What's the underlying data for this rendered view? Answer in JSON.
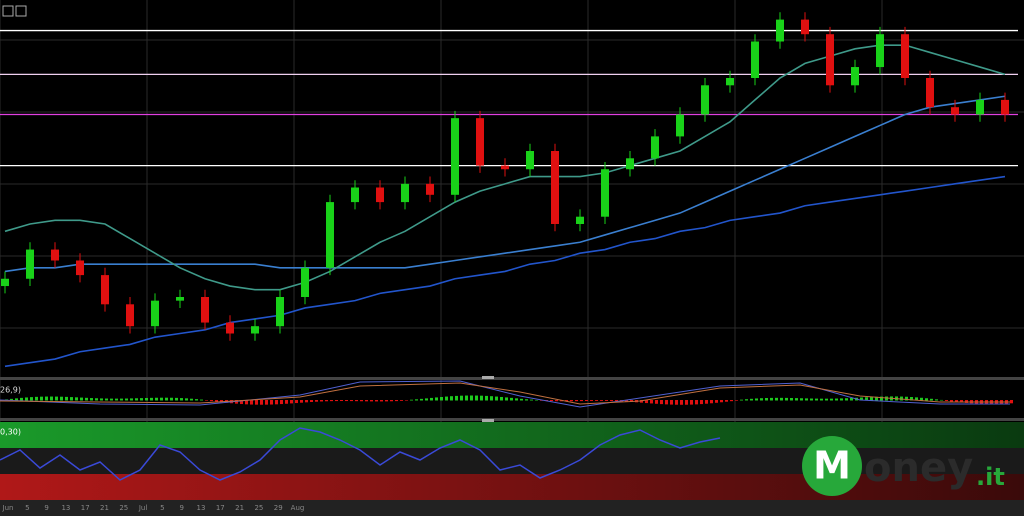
{
  "chart_data": {
    "type": "candlestick",
    "open": [
      23,
      25,
      33,
      30,
      26,
      18,
      12,
      19,
      20,
      13,
      10,
      12,
      20,
      28,
      46,
      50,
      46,
      51,
      48,
      69,
      56,
      55,
      60,
      40,
      42,
      55,
      58,
      64,
      70,
      78,
      80,
      90,
      96,
      92,
      78,
      83,
      92,
      80,
      72,
      70,
      74
    ],
    "high": [
      27,
      35,
      35,
      32,
      28,
      20,
      21,
      22,
      22,
      15,
      14,
      22,
      30,
      48,
      52,
      52,
      53,
      53,
      71,
      71,
      58,
      62,
      62,
      44,
      57,
      60,
      66,
      72,
      80,
      82,
      92,
      98,
      98,
      94,
      85,
      94,
      94,
      82,
      74,
      76,
      76
    ],
    "low": [
      21,
      23,
      28,
      24,
      16,
      10,
      10,
      17,
      11,
      8,
      8,
      10,
      18,
      26,
      44,
      44,
      44,
      46,
      46,
      54,
      53,
      53,
      38,
      38,
      40,
      53,
      56,
      62,
      68,
      76,
      78,
      88,
      90,
      76,
      76,
      81,
      78,
      70,
      68,
      68,
      68
    ],
    "close": [
      25,
      33,
      30,
      26,
      18,
      12,
      19,
      20,
      13,
      10,
      12,
      20,
      28,
      46,
      50,
      46,
      51,
      48,
      69,
      56,
      55,
      60,
      40,
      42,
      55,
      58,
      64,
      70,
      78,
      80,
      90,
      96,
      92,
      78,
      83,
      92,
      80,
      72,
      70,
      74,
      70
    ],
    "up_color": "#19d219",
    "down_color": "#e01010",
    "moving_averages": [
      {
        "color": "#2255cc",
        "values": [
          1,
          2,
          3,
          5,
          6,
          7,
          9,
          10,
          11,
          13,
          14,
          15,
          17,
          18,
          19,
          21,
          22,
          23,
          25,
          26,
          27,
          29,
          30,
          32,
          33,
          35,
          36,
          38,
          39,
          41,
          42,
          43,
          45,
          46,
          47,
          48,
          49,
          50,
          51,
          52,
          53
        ]
      },
      {
        "color": "#3a7fd0",
        "values": [
          27,
          28,
          28,
          29,
          29,
          29,
          29,
          29,
          29,
          29,
          29,
          28,
          28,
          28,
          28,
          28,
          28,
          29,
          30,
          31,
          32,
          33,
          34,
          35,
          37,
          39,
          41,
          43,
          46,
          49,
          52,
          55,
          58,
          61,
          64,
          67,
          70,
          72,
          73,
          74,
          75
        ]
      },
      {
        "color": "#3f9a8a",
        "values": [
          38,
          40,
          41,
          41,
          40,
          36,
          32,
          28,
          25,
          23,
          22,
          22,
          24,
          27,
          31,
          35,
          38,
          42,
          46,
          49,
          51,
          53,
          53,
          53,
          54,
          56,
          58,
          60,
          64,
          68,
          74,
          80,
          84,
          86,
          88,
          89,
          89,
          87,
          85,
          83,
          81
        ]
      }
    ],
    "levels": [
      {
        "value": 93,
        "color": "#ffffff"
      },
      {
        "value": 81,
        "color": "#f0d0f0"
      },
      {
        "value": 70,
        "color": "#e040e0"
      },
      {
        "value": 56,
        "color": "#ffffff"
      }
    ],
    "ylim": [
      0,
      100
    ],
    "macd_label": "26,9)",
    "oscillator_label": "0,30)",
    "x_labels": [
      "Jun",
      "5",
      "9",
      "13",
      "17",
      "21",
      "25",
      "Jul",
      "5",
      "9",
      "13",
      "17",
      "21",
      "25",
      "29",
      "Aug"
    ],
    "logo": {
      "initial": "M",
      "rest": "oney",
      "suffix": ".it"
    }
  }
}
